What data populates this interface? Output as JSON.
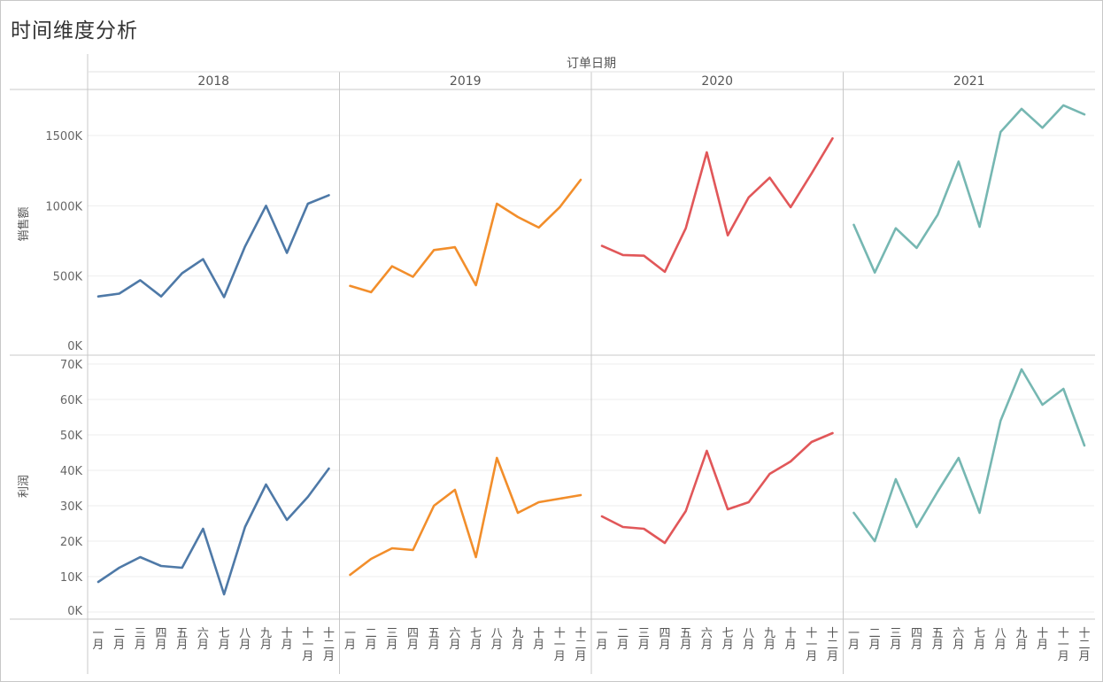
{
  "title": "时间维度分析",
  "chart_data": {
    "type": "line",
    "column_header": "订单日期",
    "years": [
      "2018",
      "2019",
      "2020",
      "2021"
    ],
    "months": [
      "一月",
      "二月",
      "三月",
      "四月",
      "五月",
      "六月",
      "七月",
      "八月",
      "九月",
      "十月",
      "十一月",
      "十二月"
    ],
    "colors": [
      "#4e79a7",
      "#f28e2b",
      "#e15759",
      "#76b7b2"
    ],
    "rows": [
      {
        "label": "销售额",
        "ylim": [
          0,
          1750
        ],
        "ticks": [
          0,
          500,
          1000,
          1500
        ],
        "tick_labels": [
          "0K",
          "500K",
          "1000K",
          "1500K"
        ],
        "unit": "K",
        "series": [
          {
            "year": "2018",
            "values": [
              355,
              375,
              470,
              355,
              520,
              620,
              350,
              710,
              1000,
              665,
              1015,
              1075
            ]
          },
          {
            "year": "2019",
            "values": [
              430,
              385,
              570,
              495,
              685,
              705,
              435,
              1015,
              920,
              845,
              990,
              1185
            ]
          },
          {
            "year": "2020",
            "values": [
              715,
              650,
              645,
              530,
              840,
              1380,
              790,
              1060,
              1200,
              990,
              1230,
              1480
            ]
          },
          {
            "year": "2021",
            "values": [
              865,
              525,
              840,
              700,
              935,
              1315,
              850,
              1525,
              1690,
              1555,
              1715,
              1650
            ]
          }
        ]
      },
      {
        "label": "利润",
        "ylim": [
          -2,
          72
        ],
        "ticks": [
          0,
          10,
          20,
          30,
          40,
          50,
          60,
          70
        ],
        "tick_labels": [
          "0K",
          "10K",
          "20K",
          "30K",
          "40K",
          "50K",
          "60K",
          "70K"
        ],
        "unit": "K",
        "series": [
          {
            "year": "2018",
            "values": [
              8.5,
              12.5,
              15.5,
              13,
              12.5,
              23.5,
              5,
              24,
              36,
              26,
              32.5,
              40.5
            ]
          },
          {
            "year": "2019",
            "values": [
              10.5,
              15,
              18,
              17.5,
              30,
              34.5,
              15.5,
              43.5,
              28,
              31,
              32,
              33
            ]
          },
          {
            "year": "2020",
            "values": [
              27,
              24,
              23.5,
              19.5,
              28.5,
              45.5,
              29,
              31,
              39,
              42.5,
              48,
              50.5
            ]
          },
          {
            "year": "2021",
            "values": [
              28,
              20,
              37.5,
              24,
              34,
              43.5,
              28,
              54,
              68.5,
              58.5,
              63,
              47
            ]
          }
        ]
      }
    ]
  }
}
